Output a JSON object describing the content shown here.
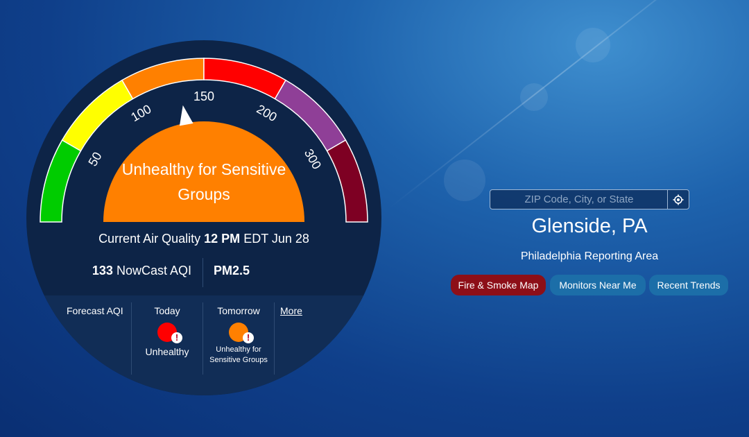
{
  "dial": {
    "scale_labels": [
      "50",
      "100",
      "150",
      "200",
      "300"
    ],
    "segment_colors": [
      "#00cc00",
      "#ffff00",
      "#ff8000",
      "#ff0000",
      "#8f3f97",
      "#7e0023"
    ],
    "category": "Unhealthy for Sensitive Groups",
    "category_color": "#ff8000",
    "pointer_value": 133
  },
  "current": {
    "prefix": "Current Air Quality",
    "time": "12 PM",
    "suffix": "EDT Jun 28"
  },
  "nowcast": {
    "value": "133",
    "label": "NowCast AQI",
    "pollutant": "PM2.5"
  },
  "forecast": {
    "label": "Forecast AQI",
    "today": {
      "day": "Today",
      "category": "Unhealthy",
      "color": "#ff0000"
    },
    "tomorrow": {
      "day": "Tomorrow",
      "category": "Unhealthy for Sensitive Groups",
      "color": "#ff8000"
    },
    "more": "More"
  },
  "search": {
    "placeholder": "ZIP Code, City, or State"
  },
  "location": {
    "city": "Glenside, PA",
    "reporting_area": "Philadelphia Reporting Area"
  },
  "buttons": {
    "fire": "Fire & Smoke Map",
    "monitors": "Monitors Near Me",
    "trends": "Recent Trends"
  }
}
